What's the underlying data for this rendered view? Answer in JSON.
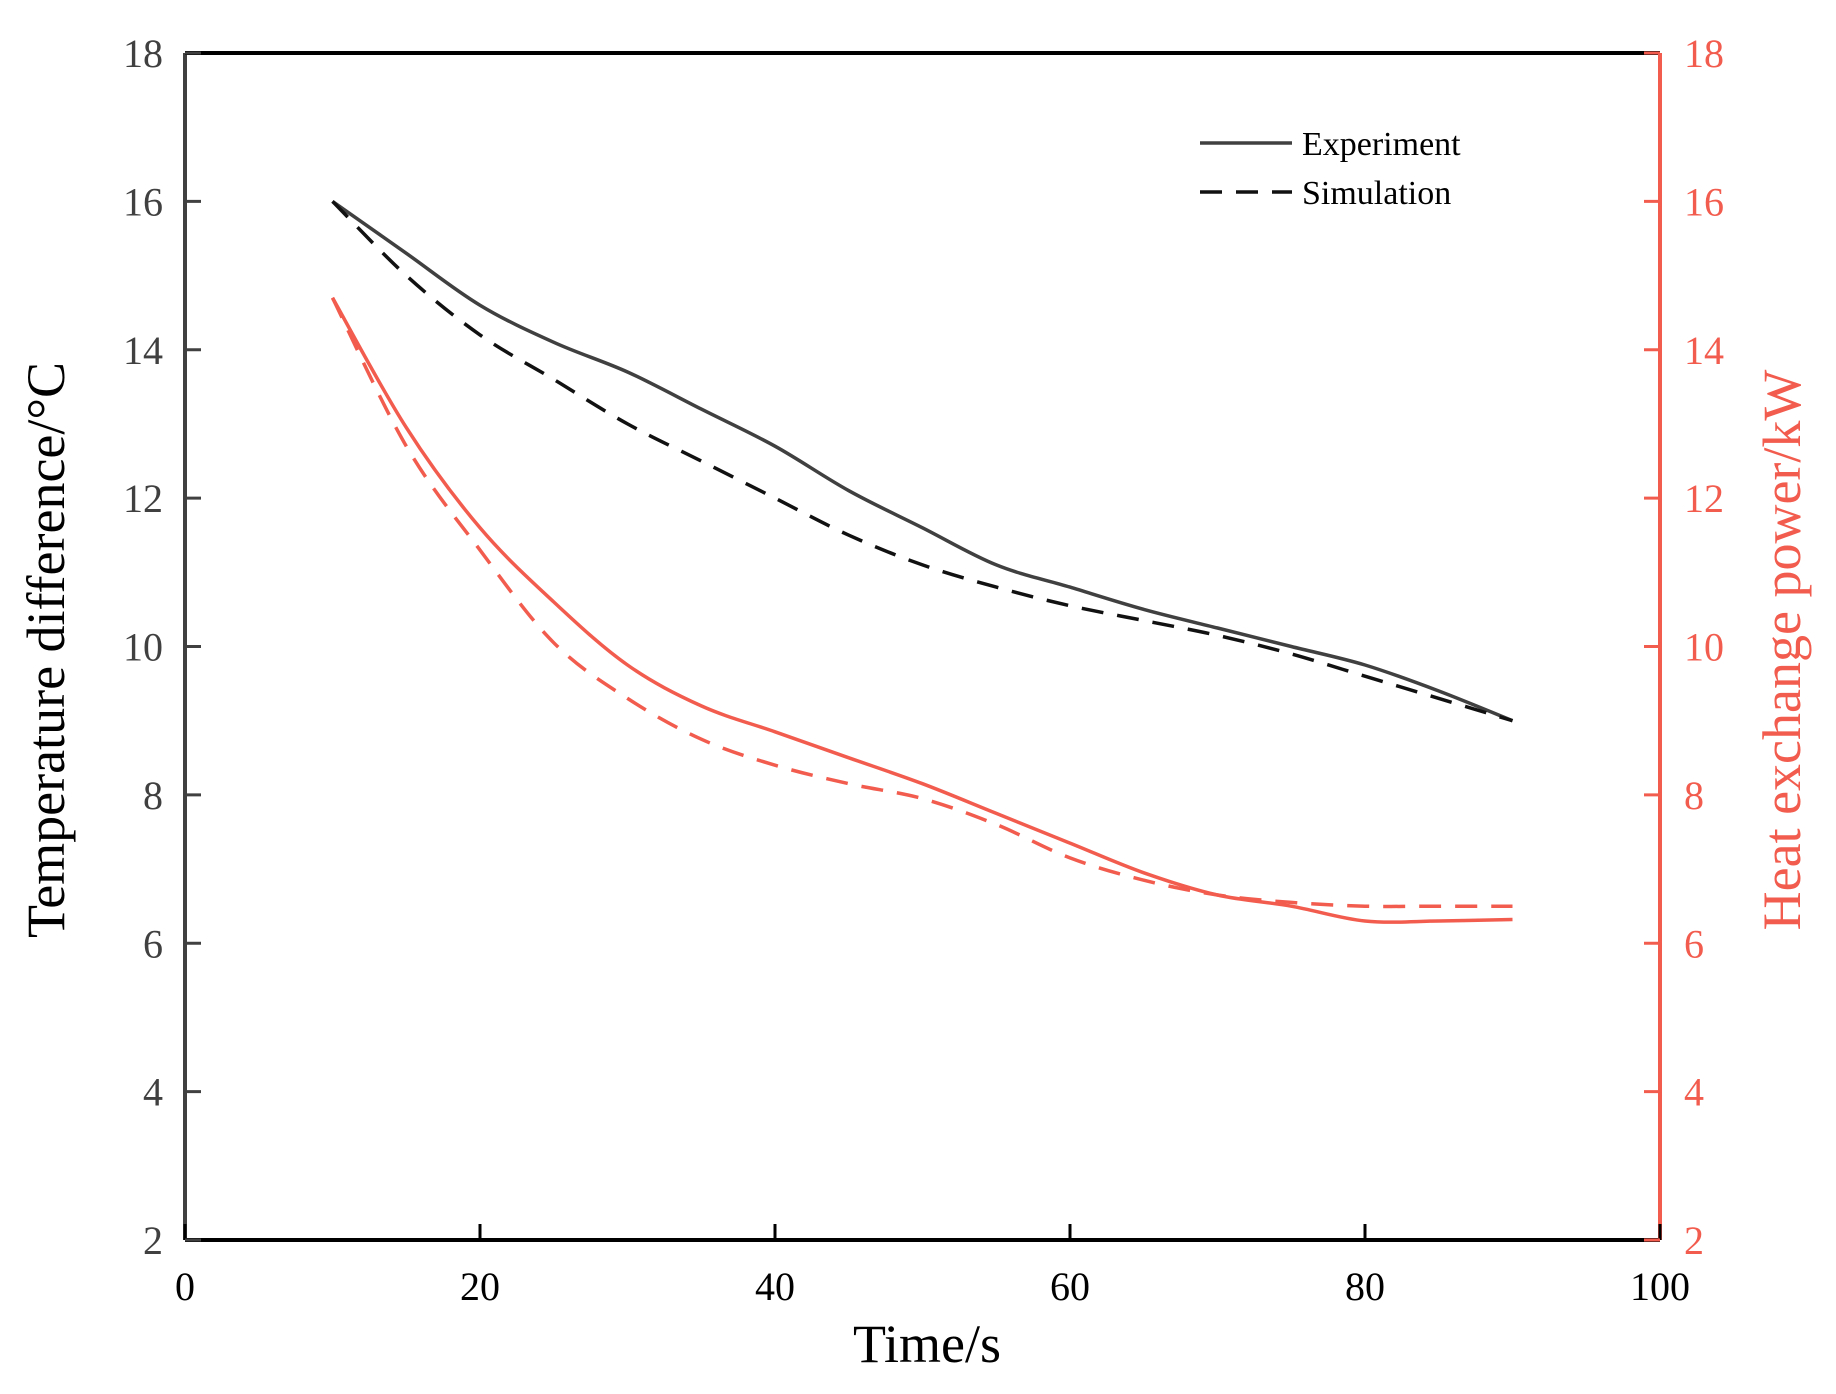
{
  "chart_data": {
    "type": "line",
    "title": "",
    "xlabel": "Time/s",
    "ylabel": "Temperature difference/°C",
    "y2label": "Heat exchange power/kW",
    "xlim": [
      0,
      100
    ],
    "ylim": [
      2,
      18
    ],
    "y2lim": [
      2,
      18
    ],
    "xticks": [
      0,
      20,
      40,
      60,
      80,
      100
    ],
    "yticks": [
      2,
      4,
      6,
      8,
      10,
      12,
      14,
      16,
      18
    ],
    "y2ticks": [
      2,
      4,
      6,
      8,
      10,
      12,
      14,
      16,
      18
    ],
    "grid": false,
    "legend_position": "top-right",
    "colors": {
      "axis_left": "#404040",
      "axis_right": "#f25c4e",
      "temp_series": "#404040",
      "temp_sim_series": "#111111",
      "power_series": "#f25c4e"
    },
    "legend": [
      {
        "label": "Experiment",
        "style": "solid"
      },
      {
        "label": "Simulation",
        "style": "dashed"
      }
    ],
    "series": [
      {
        "name": "Temperature difference – Experiment",
        "axis": "left",
        "style": "solid",
        "color": "#404040",
        "x": [
          10,
          15,
          20,
          25,
          30,
          35,
          40,
          45,
          50,
          55,
          60,
          65,
          70,
          75,
          80,
          85,
          90
        ],
        "y": [
          16.0,
          15.3,
          14.6,
          14.1,
          13.7,
          13.2,
          12.7,
          12.1,
          11.6,
          11.1,
          10.8,
          10.5,
          10.25,
          10.0,
          9.75,
          9.4,
          9.0
        ]
      },
      {
        "name": "Temperature difference – Simulation",
        "axis": "left",
        "style": "dashed",
        "color": "#111111",
        "x": [
          10,
          15,
          20,
          25,
          30,
          35,
          40,
          45,
          50,
          55,
          60,
          65,
          70,
          75,
          80,
          85,
          90
        ],
        "y": [
          16.0,
          15.0,
          14.2,
          13.6,
          13.0,
          12.5,
          12.0,
          11.5,
          11.1,
          10.8,
          10.55,
          10.35,
          10.15,
          9.9,
          9.6,
          9.3,
          9.0
        ]
      },
      {
        "name": "Heat exchange power – Experiment",
        "axis": "right",
        "style": "solid",
        "color": "#f25c4e",
        "x": [
          10,
          15,
          20,
          25,
          30,
          35,
          40,
          45,
          50,
          55,
          60,
          65,
          70,
          75,
          80,
          85,
          90
        ],
        "y": [
          14.7,
          12.95,
          11.6,
          10.6,
          9.75,
          9.2,
          8.85,
          8.5,
          8.15,
          7.75,
          7.35,
          6.95,
          6.65,
          6.5,
          6.3,
          6.3,
          6.32
        ]
      },
      {
        "name": "Heat exchange power – Simulation",
        "axis": "right",
        "style": "dashed",
        "color": "#f25c4e",
        "x": [
          10,
          15,
          20,
          25,
          30,
          35,
          40,
          45,
          50,
          55,
          60,
          65,
          70,
          75,
          80,
          85,
          90
        ],
        "y": [
          14.7,
          12.7,
          11.3,
          10.05,
          9.3,
          8.75,
          8.4,
          8.15,
          7.95,
          7.6,
          7.15,
          6.85,
          6.65,
          6.55,
          6.5,
          6.5,
          6.5
        ]
      }
    ]
  }
}
